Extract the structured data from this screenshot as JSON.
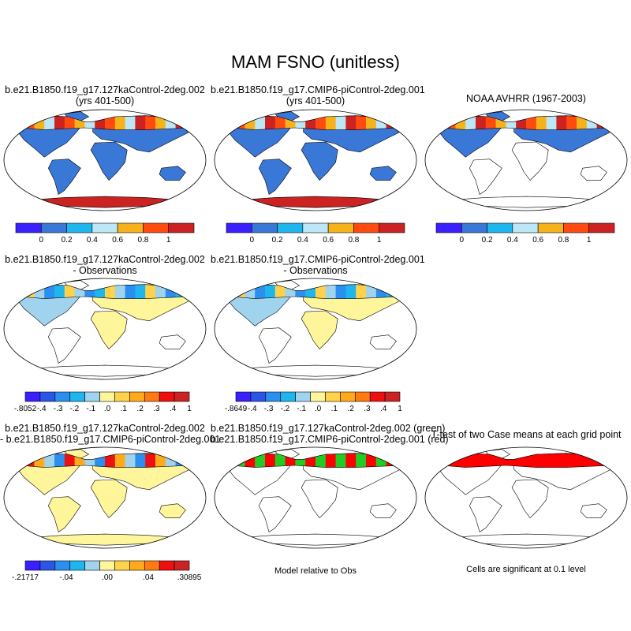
{
  "title": "MAM FSNO (unitless)",
  "colors": {
    "land": "#3a78d8",
    "ocean_bg": "#ffffff",
    "outline": "#000000",
    "ice": "#cc2222",
    "green": "#22cc22",
    "red": "#ff0000"
  },
  "panels": [
    {
      "id": "case1",
      "title": "b.e21.B1850.f19_g17.127kaControl-2deg.002",
      "subtitle": "(yrs 401-500)"
    },
    {
      "id": "case2",
      "title": "b.e21.B1850.f19_g17.CMIP6-piControl-2deg.001",
      "subtitle": "(yrs 401-500)"
    },
    {
      "id": "obs",
      "title": "NOAA AVHRR (1967-2003)",
      "subtitle": ""
    },
    {
      "id": "diff1",
      "title": "b.e21.B1850.f19_g17.127kaControl-2deg.002",
      "subtitle": "- Observations"
    },
    {
      "id": "diff2",
      "title": "b.e21.B1850.f19_g17.CMIP6-piControl-2deg.001",
      "subtitle": "- Observations"
    },
    {
      "id": "casediff",
      "title": "b.e21.B1850.f19_g17.127kaControl-2deg.002",
      "subtitle": "- b.e21.B1850.f19_g17.CMIP6-piControl-2deg.001"
    },
    {
      "id": "rel",
      "title": "b.e21.B1850.f19_g17.127kaControl-2deg.002 (green)",
      "subtitle": "b.e21.B1850.f19_g17.CMIP6-piControl-2deg.001 (red)"
    },
    {
      "id": "ttest",
      "title": "T-test of two Case means at each grid point",
      "subtitle": ""
    }
  ],
  "notes": {
    "rel": "Model relative to Obs",
    "ttest": "Cells are significant at 0.1 level"
  },
  "chart_data": {
    "type": "heatmap",
    "title": "MAM FSNO (unitless)",
    "colorbars": [
      {
        "panel": "row1",
        "colors": [
          "#3a1fff",
          "#3a78d8",
          "#1fb6ee",
          "#bde6f6",
          "#f6b21a",
          "#ff4a10",
          "#cc2222"
        ],
        "tick_labels": [
          "0",
          "0.2",
          "0.4",
          "0.6",
          "0.8",
          "1"
        ],
        "range": [
          -0.2,
          1.2
        ]
      },
      {
        "panel": "diff1",
        "colors": [
          "#3a1fff",
          "#2a55e6",
          "#2a8fee",
          "#1fb6ee",
          "#9fd3ee",
          "#fff59a",
          "#ffd24a",
          "#ffaa1a",
          "#ff7a10",
          "#ee1010",
          "#cc2222"
        ],
        "tick_labels": [
          "-.8052",
          "-.4",
          "-.3",
          "-.2",
          "-.1",
          ".0",
          ".1",
          ".2",
          ".3",
          ".4",
          "1"
        ]
      },
      {
        "panel": "diff2",
        "colors": [
          "#3a1fff",
          "#2a55e6",
          "#2a8fee",
          "#1fb6ee",
          "#9fd3ee",
          "#fff59a",
          "#ffd24a",
          "#ffaa1a",
          "#ff7a10",
          "#ee1010",
          "#cc2222"
        ],
        "tick_labels": [
          "-.8649",
          "-.4",
          "-.3",
          "-.2",
          "-.1",
          ".0",
          ".1",
          ".2",
          ".3",
          ".4",
          "1"
        ]
      },
      {
        "panel": "casediff",
        "colors": [
          "#3a1fff",
          "#2a55e6",
          "#2a8fee",
          "#1fb6ee",
          "#9fd3ee",
          "#fff59a",
          "#ffd24a",
          "#ffaa1a",
          "#ff7a10",
          "#ee1010",
          "#cc2222"
        ],
        "tick_labels": [
          "-.21717",
          "-.04",
          ".00",
          ".04",
          ".30895"
        ]
      }
    ]
  }
}
